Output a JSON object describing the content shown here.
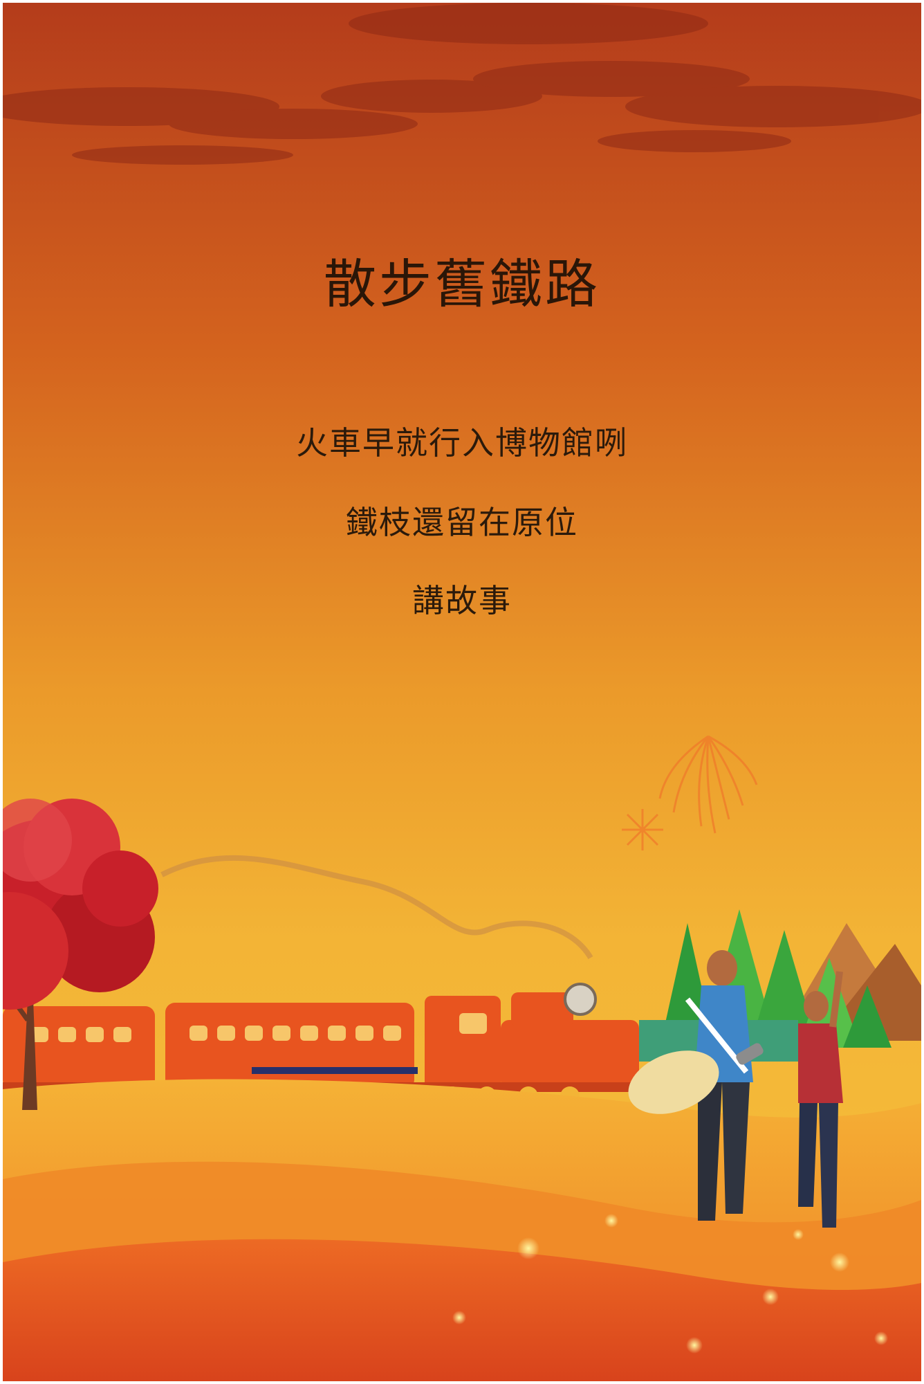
{
  "poem": {
    "title": "散步舊鐵路",
    "lines": [
      "火車早就行入博物館咧",
      "鐵枝還留在原位",
      "講故事"
    ]
  },
  "colors": {
    "sky_top": "#b8421c",
    "sky_mid": "#e0761f",
    "sky_low": "#f2a62a",
    "ground": "#e65a22",
    "train": "#e8541f",
    "tree": "#c8202a"
  },
  "icons": [
    "clouds-illustration",
    "fireworks-illustration",
    "red-tree-illustration",
    "steam-train-illustration",
    "pine-trees-illustration",
    "mountains-illustration",
    "walking-couple-illustration"
  ]
}
